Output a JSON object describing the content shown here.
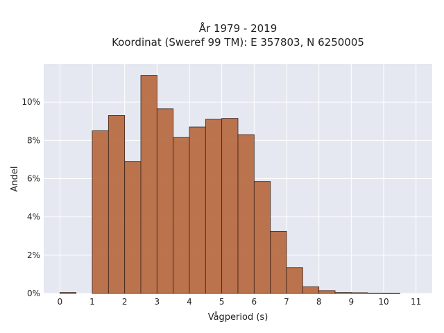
{
  "chart_data": {
    "type": "bar",
    "title": "År 1979 - 2019",
    "subtitle": "Koordinat (Sweref 99 TM): E 357803, N 6250005",
    "xlabel": "Vågperiod (s)",
    "ylabel": "Andel",
    "bin_width": 0.5,
    "bins": [
      {
        "x0": 0.0,
        "value": 0.05
      },
      {
        "x0": 1.0,
        "value": 8.5
      },
      {
        "x0": 1.5,
        "value": 9.3
      },
      {
        "x0": 2.0,
        "value": 6.9
      },
      {
        "x0": 2.5,
        "value": 11.4
      },
      {
        "x0": 3.0,
        "value": 9.65
      },
      {
        "x0": 3.5,
        "value": 8.15
      },
      {
        "x0": 4.0,
        "value": 8.7
      },
      {
        "x0": 4.5,
        "value": 9.1
      },
      {
        "x0": 5.0,
        "value": 9.15
      },
      {
        "x0": 5.5,
        "value": 8.3
      },
      {
        "x0": 6.0,
        "value": 5.85
      },
      {
        "x0": 6.5,
        "value": 3.25
      },
      {
        "x0": 7.0,
        "value": 1.35
      },
      {
        "x0": 7.5,
        "value": 0.35
      },
      {
        "x0": 8.0,
        "value": 0.15
      },
      {
        "x0": 8.5,
        "value": 0.05
      },
      {
        "x0": 9.0,
        "value": 0.04
      },
      {
        "x0": 9.5,
        "value": 0.02
      },
      {
        "x0": 10.0,
        "value": 0.01
      }
    ],
    "x_ticks": [
      "0",
      "1",
      "2",
      "3",
      "4",
      "5",
      "6",
      "7",
      "8",
      "9",
      "10",
      "11"
    ],
    "y_ticks": [
      "0%",
      "2%",
      "4%",
      "6%",
      "8%",
      "10%"
    ],
    "xlim": [
      -0.5,
      11.5
    ],
    "ylim": [
      0,
      12
    ],
    "bar_color": "#b86d45",
    "edge_color": "#3a2418",
    "grid": true,
    "background": "#e5e8f0"
  }
}
